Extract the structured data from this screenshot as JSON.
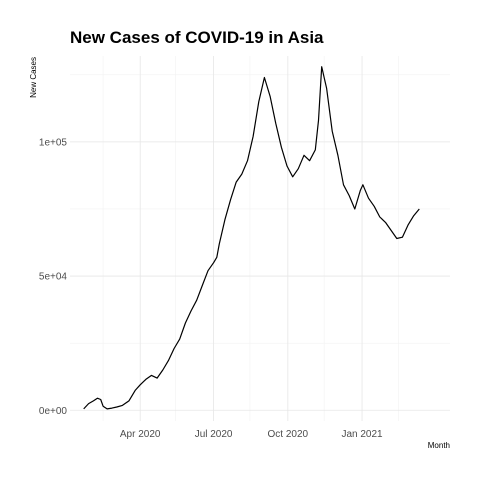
{
  "chart_data": {
    "type": "line",
    "title": "New Cases of COVID-19 in Asia",
    "xlabel": "Month",
    "ylabel": "New Cases",
    "grid": true,
    "legend": "none",
    "xlim": [
      "2020-01-05",
      "2021-04-20"
    ],
    "ylim": [
      -4000,
      132000
    ],
    "x_ticks": [
      {
        "date": "2020-04-01",
        "label": "Apr 2020"
      },
      {
        "date": "2020-07-01",
        "label": "Jul 2020"
      },
      {
        "date": "2020-10-01",
        "label": "Oct 2020"
      },
      {
        "date": "2021-01-01",
        "label": "Jan 2021"
      }
    ],
    "x_minor_ticks": [
      "2020-02-15",
      "2020-05-15",
      "2020-08-15",
      "2020-11-15",
      "2021-02-15"
    ],
    "y_ticks": [
      {
        "value": 0,
        "label": "0e+00"
      },
      {
        "value": 50000,
        "label": "5e+04"
      },
      {
        "value": 100000,
        "label": "1e+05"
      }
    ],
    "y_minor_ticks": [
      25000,
      75000,
      125000
    ],
    "x": [
      "2020-01-22",
      "2020-01-28",
      "2020-02-03",
      "2020-02-08",
      "2020-02-12",
      "2020-02-15",
      "2020-02-20",
      "2020-02-26",
      "2020-03-03",
      "2020-03-10",
      "2020-03-18",
      "2020-03-26",
      "2020-04-01",
      "2020-04-08",
      "2020-04-15",
      "2020-04-22",
      "2020-04-29",
      "2020-05-06",
      "2020-05-13",
      "2020-05-20",
      "2020-05-27",
      "2020-06-03",
      "2020-06-10",
      "2020-06-17",
      "2020-06-24",
      "2020-07-01",
      "2020-07-05",
      "2020-07-08",
      "2020-07-15",
      "2020-07-22",
      "2020-07-29",
      "2020-08-05",
      "2020-08-12",
      "2020-08-19",
      "2020-08-26",
      "2020-09-02",
      "2020-09-09",
      "2020-09-16",
      "2020-09-23",
      "2020-09-30",
      "2020-10-07",
      "2020-10-14",
      "2020-10-21",
      "2020-10-28",
      "2020-11-04",
      "2020-11-08",
      "2020-11-12",
      "2020-11-18",
      "2020-11-25",
      "2020-12-02",
      "2020-12-09",
      "2020-12-16",
      "2020-12-23",
      "2020-12-30",
      "2021-01-02",
      "2021-01-09",
      "2021-01-16",
      "2021-01-23",
      "2021-01-30",
      "2021-02-06",
      "2021-02-13",
      "2021-02-20",
      "2021-02-27",
      "2021-03-06",
      "2021-03-13"
    ],
    "y": [
      500,
      2500,
      3500,
      4500,
      4000,
      1500,
      500,
      800,
      1200,
      1800,
      3500,
      7500,
      9500,
      11500,
      13000,
      12000,
      15000,
      18500,
      23000,
      26500,
      32500,
      37000,
      41000,
      46500,
      52000,
      55000,
      57000,
      62000,
      71000,
      78500,
      85000,
      88000,
      93000,
      102000,
      115000,
      124000,
      117000,
      107000,
      98000,
      91000,
      87000,
      90000,
      95000,
      93000,
      97000,
      108000,
      128000,
      120000,
      104000,
      95000,
      84000,
      80000,
      75000,
      82000,
      84000,
      79000,
      76000,
      72000,
      70000,
      67000,
      64000,
      64500,
      69000,
      72500,
      75000
    ]
  }
}
